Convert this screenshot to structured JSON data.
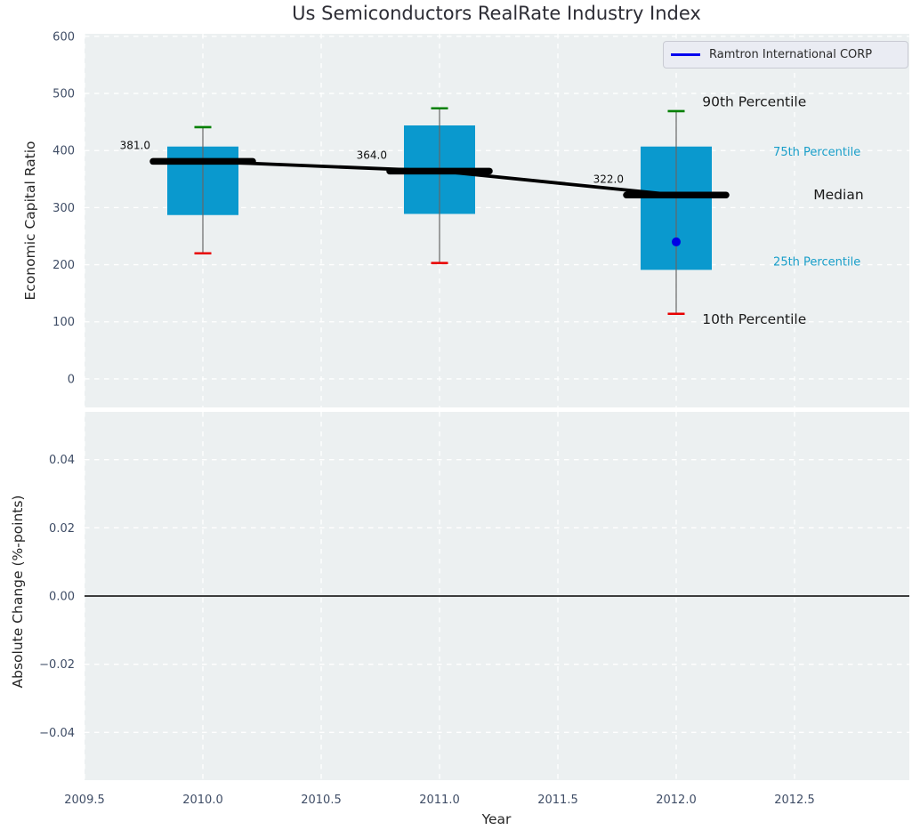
{
  "title": "Us Semiconductors RealRate Industry Index",
  "legend": {
    "label": "Ramtron International CORP",
    "line_color": "#0000ee"
  },
  "x_axis": {
    "label": "Year",
    "ticks": [
      2009.5,
      2010.0,
      2010.5,
      2011.0,
      2011.5,
      2012.0,
      2012.5
    ],
    "tick_labels": [
      "2009.5",
      "2010.0",
      "2010.5",
      "2011.0",
      "2011.5",
      "2012.0",
      "2012.5"
    ],
    "xlim": [
      2009.5,
      2012.985
    ]
  },
  "top_plot": {
    "ylabel": "Economic Capital Ratio",
    "yticks": [
      0,
      100,
      200,
      300,
      400,
      500,
      600
    ],
    "ytick_labels": [
      "0",
      "100",
      "200",
      "300",
      "400",
      "500",
      "600"
    ],
    "ylim": [
      -50,
      604.5
    ]
  },
  "bottom_plot": {
    "ylabel": "Absolute Change (%-points)",
    "yticks": [
      -0.04,
      -0.02,
      0.0,
      0.02,
      0.04
    ],
    "ytick_labels": [
      "−0.04",
      "−0.02",
      "0.00",
      "0.02",
      "0.04"
    ],
    "ylim": [
      -0.054,
      0.054
    ],
    "zero_line_y": 0.0
  },
  "chart_data": [
    {
      "type": "box",
      "title": "Us Semiconductors RealRate Industry Index",
      "xlabel": "Year",
      "ylabel": "Economic Capital Ratio",
      "ylim": [
        -50,
        604.5
      ],
      "grid": true,
      "legend_position": "upper right",
      "categories": [
        2010,
        2011,
        2012
      ],
      "boxes": [
        {
          "year": 2010,
          "p10": 220,
          "p25": 287,
          "median": 381,
          "p75": 407,
          "p90": 441,
          "median_label": "381.0"
        },
        {
          "year": 2011,
          "p10": 203,
          "p25": 289,
          "median": 364,
          "p75": 444,
          "p90": 474,
          "median_label": "364.0"
        },
        {
          "year": 2012,
          "p10": 114,
          "p25": 191,
          "median": 322,
          "p75": 407,
          "p90": 469,
          "median_label": "322.0"
        }
      ],
      "median_trend": {
        "x": [
          2010,
          2011,
          2012
        ],
        "y": [
          381,
          364,
          322
        ]
      },
      "series": [
        {
          "name": "Ramtron International CORP",
          "type": "scatter",
          "points": [
            {
              "x": 2012,
              "y": 240
            }
          ]
        }
      ],
      "annotations": [
        {
          "text": "90th Percentile",
          "x": 2012.11,
          "y": 486,
          "color": "#1a1a1a",
          "size": 15.5
        },
        {
          "text": "75th Percentile",
          "x": 2012.41,
          "y": 398,
          "color": "#189ec9",
          "size": 13
        },
        {
          "text": "Median",
          "x": 2012.58,
          "y": 323,
          "color": "#1a1a1a",
          "size": 15.5
        },
        {
          "text": "25th Percentile",
          "x": 2012.41,
          "y": 206,
          "color": "#189ec9",
          "size": 13
        },
        {
          "text": "10th Percentile",
          "x": 2012.11,
          "y": 105,
          "color": "#1a1a1a",
          "size": 15.5
        }
      ]
    },
    {
      "type": "line",
      "title": "",
      "xlabel": "Year",
      "ylabel": "Absolute Change (%-points)",
      "ylim": [
        -0.054,
        0.054
      ],
      "grid": true,
      "series": [],
      "reference_line_y": 0.0
    }
  ],
  "colors": {
    "plot_bg": "#ecf0f1",
    "grid": "#ffffff",
    "box_fill": "#0a99ce",
    "whisker": "#666666",
    "cap_top": "#008000",
    "cap_bottom": "#e80000",
    "median_line": "#000000",
    "trend_line": "#000000",
    "marker": "#0000e6",
    "zero_line": "#000000",
    "tick_text": "#3f4d66",
    "label_text": "#262626",
    "value_label_text": "#111111"
  }
}
